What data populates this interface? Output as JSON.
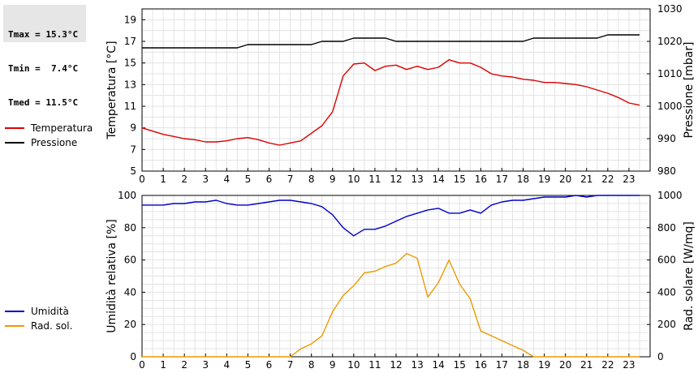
{
  "stats": {
    "tmax": "Tmax = 15.3°C",
    "tmin": "Tmin =  7.4°C",
    "tmed": "Tmed = 11.5°C"
  },
  "chart_data": [
    {
      "type": "line",
      "x_ticks": [
        0,
        1,
        2,
        3,
        4,
        5,
        6,
        7,
        8,
        9,
        10,
        11,
        12,
        13,
        14,
        15,
        16,
        17,
        18,
        19,
        20,
        21,
        22,
        23
      ],
      "xlim": [
        0,
        24
      ],
      "ylabel_left": "Temperatura [°C]",
      "ylabel_right": "Pressione [mbar]",
      "ylim_left": [
        5,
        20
      ],
      "yticks_left": [
        5,
        7,
        9,
        11,
        13,
        15,
        17,
        19
      ],
      "ylim_right": [
        980,
        1030
      ],
      "yticks_right": [
        980,
        990,
        1000,
        1010,
        1020,
        1030
      ],
      "grid": true,
      "legend_position": "left",
      "series": [
        {
          "name": "Temperatura",
          "color": "#dd0000",
          "axis": "left",
          "x": [
            0,
            0.5,
            1,
            1.5,
            2,
            2.5,
            3,
            3.5,
            4,
            4.5,
            5,
            5.5,
            6,
            6.5,
            7,
            7.5,
            8,
            8.5,
            9,
            9.5,
            10,
            10.5,
            11,
            11.5,
            12,
            12.5,
            13,
            13.5,
            14,
            14.5,
            15,
            15.5,
            16,
            16.5,
            17,
            17.5,
            18,
            18.5,
            19,
            19.5,
            20,
            20.5,
            21,
            21.5,
            22,
            22.5,
            23,
            23.5
          ],
          "y": [
            9.0,
            8.7,
            8.4,
            8.2,
            8.0,
            7.9,
            7.7,
            7.7,
            7.8,
            8.0,
            8.1,
            7.9,
            7.6,
            7.4,
            7.6,
            7.8,
            8.5,
            9.2,
            10.5,
            13.8,
            14.9,
            15.0,
            14.3,
            14.7,
            14.8,
            14.4,
            14.7,
            14.4,
            14.6,
            15.3,
            15.0,
            15.0,
            14.6,
            14.0,
            13.8,
            13.7,
            13.5,
            13.4,
            13.2,
            13.2,
            13.1,
            13.0,
            12.8,
            12.5,
            12.2,
            11.8,
            11.3,
            11.1
          ]
        },
        {
          "name": "Pressione",
          "color": "#000000",
          "axis": "right",
          "x": [
            0,
            0.5,
            1,
            1.5,
            2,
            2.5,
            3,
            3.5,
            4,
            4.5,
            5,
            5.5,
            6,
            6.5,
            7,
            7.5,
            8,
            8.5,
            9,
            9.5,
            10,
            10.5,
            11,
            11.5,
            12,
            12.5,
            13,
            13.5,
            14,
            14.5,
            15,
            15.5,
            16,
            16.5,
            17,
            17.5,
            18,
            18.5,
            19,
            19.5,
            20,
            20.5,
            21,
            21.5,
            22,
            22.5,
            23,
            23.5
          ],
          "y": [
            1018,
            1018,
            1018,
            1018,
            1018,
            1018,
            1018,
            1018,
            1018,
            1018,
            1019,
            1019,
            1019,
            1019,
            1019,
            1019,
            1019,
            1020,
            1020,
            1020,
            1021,
            1021,
            1021,
            1021,
            1020,
            1020,
            1020,
            1020,
            1020,
            1020,
            1020,
            1020,
            1020,
            1020,
            1020,
            1020,
            1020,
            1021,
            1021,
            1021,
            1021,
            1021,
            1021,
            1021,
            1022,
            1022,
            1022,
            1022
          ]
        }
      ]
    },
    {
      "type": "line",
      "x_ticks": [
        0,
        1,
        2,
        3,
        4,
        5,
        6,
        7,
        8,
        9,
        10,
        11,
        12,
        13,
        14,
        15,
        16,
        17,
        18,
        19,
        20,
        21,
        22,
        23
      ],
      "xlim": [
        0,
        24
      ],
      "ylabel_left": "Umidità relativa [%]",
      "ylabel_right": "Rad. solare [W/mq]",
      "ylim_left": [
        0,
        100
      ],
      "yticks_left": [
        0,
        20,
        40,
        60,
        80,
        100
      ],
      "ylim_right": [
        0,
        1000
      ],
      "yticks_right": [
        0,
        200,
        400,
        600,
        800,
        1000
      ],
      "grid": true,
      "legend_position": "left",
      "series": [
        {
          "name": "Umidità",
          "color": "#0000cc",
          "axis": "left",
          "x": [
            0,
            0.5,
            1,
            1.5,
            2,
            2.5,
            3,
            3.5,
            4,
            4.5,
            5,
            5.5,
            6,
            6.5,
            7,
            7.5,
            8,
            8.5,
            9,
            9.5,
            10,
            10.5,
            11,
            11.5,
            12,
            12.5,
            13,
            13.5,
            14,
            14.5,
            15,
            15.5,
            16,
            16.5,
            17,
            17.5,
            18,
            18.5,
            19,
            19.5,
            20,
            20.5,
            21,
            21.5,
            22,
            22.5,
            23,
            23.5
          ],
          "y": [
            94,
            94,
            94,
            95,
            95,
            96,
            96,
            97,
            95,
            94,
            94,
            95,
            96,
            97,
            97,
            96,
            95,
            93,
            88,
            80,
            75,
            79,
            79,
            81,
            84,
            87,
            89,
            91,
            92,
            89,
            89,
            91,
            89,
            94,
            96,
            97,
            97,
            98,
            99,
            99,
            99,
            100,
            99,
            100,
            100,
            100,
            100,
            100
          ]
        },
        {
          "name": "Rad. sol.",
          "color": "#ee9900",
          "axis": "right",
          "x": [
            0,
            0.5,
            1,
            1.5,
            2,
            2.5,
            3,
            3.5,
            4,
            4.5,
            5,
            5.5,
            6,
            6.5,
            7,
            7.5,
            8,
            8.5,
            9,
            9.5,
            10,
            10.5,
            11,
            11.5,
            12,
            12.5,
            13,
            13.5,
            14,
            14.5,
            15,
            15.5,
            16,
            16.5,
            17,
            17.5,
            18,
            18.5,
            19,
            19.5,
            20,
            20.5,
            21,
            21.5,
            22,
            22.5,
            23,
            23.5
          ],
          "y": [
            0,
            0,
            0,
            0,
            0,
            0,
            0,
            0,
            0,
            0,
            0,
            0,
            0,
            0,
            0,
            50,
            80,
            130,
            280,
            380,
            440,
            520,
            530,
            560,
            580,
            640,
            610,
            370,
            460,
            600,
            450,
            360,
            160,
            130,
            100,
            70,
            40,
            0,
            0,
            0,
            0,
            0,
            0,
            0,
            0,
            0,
            0,
            0
          ]
        }
      ]
    }
  ]
}
